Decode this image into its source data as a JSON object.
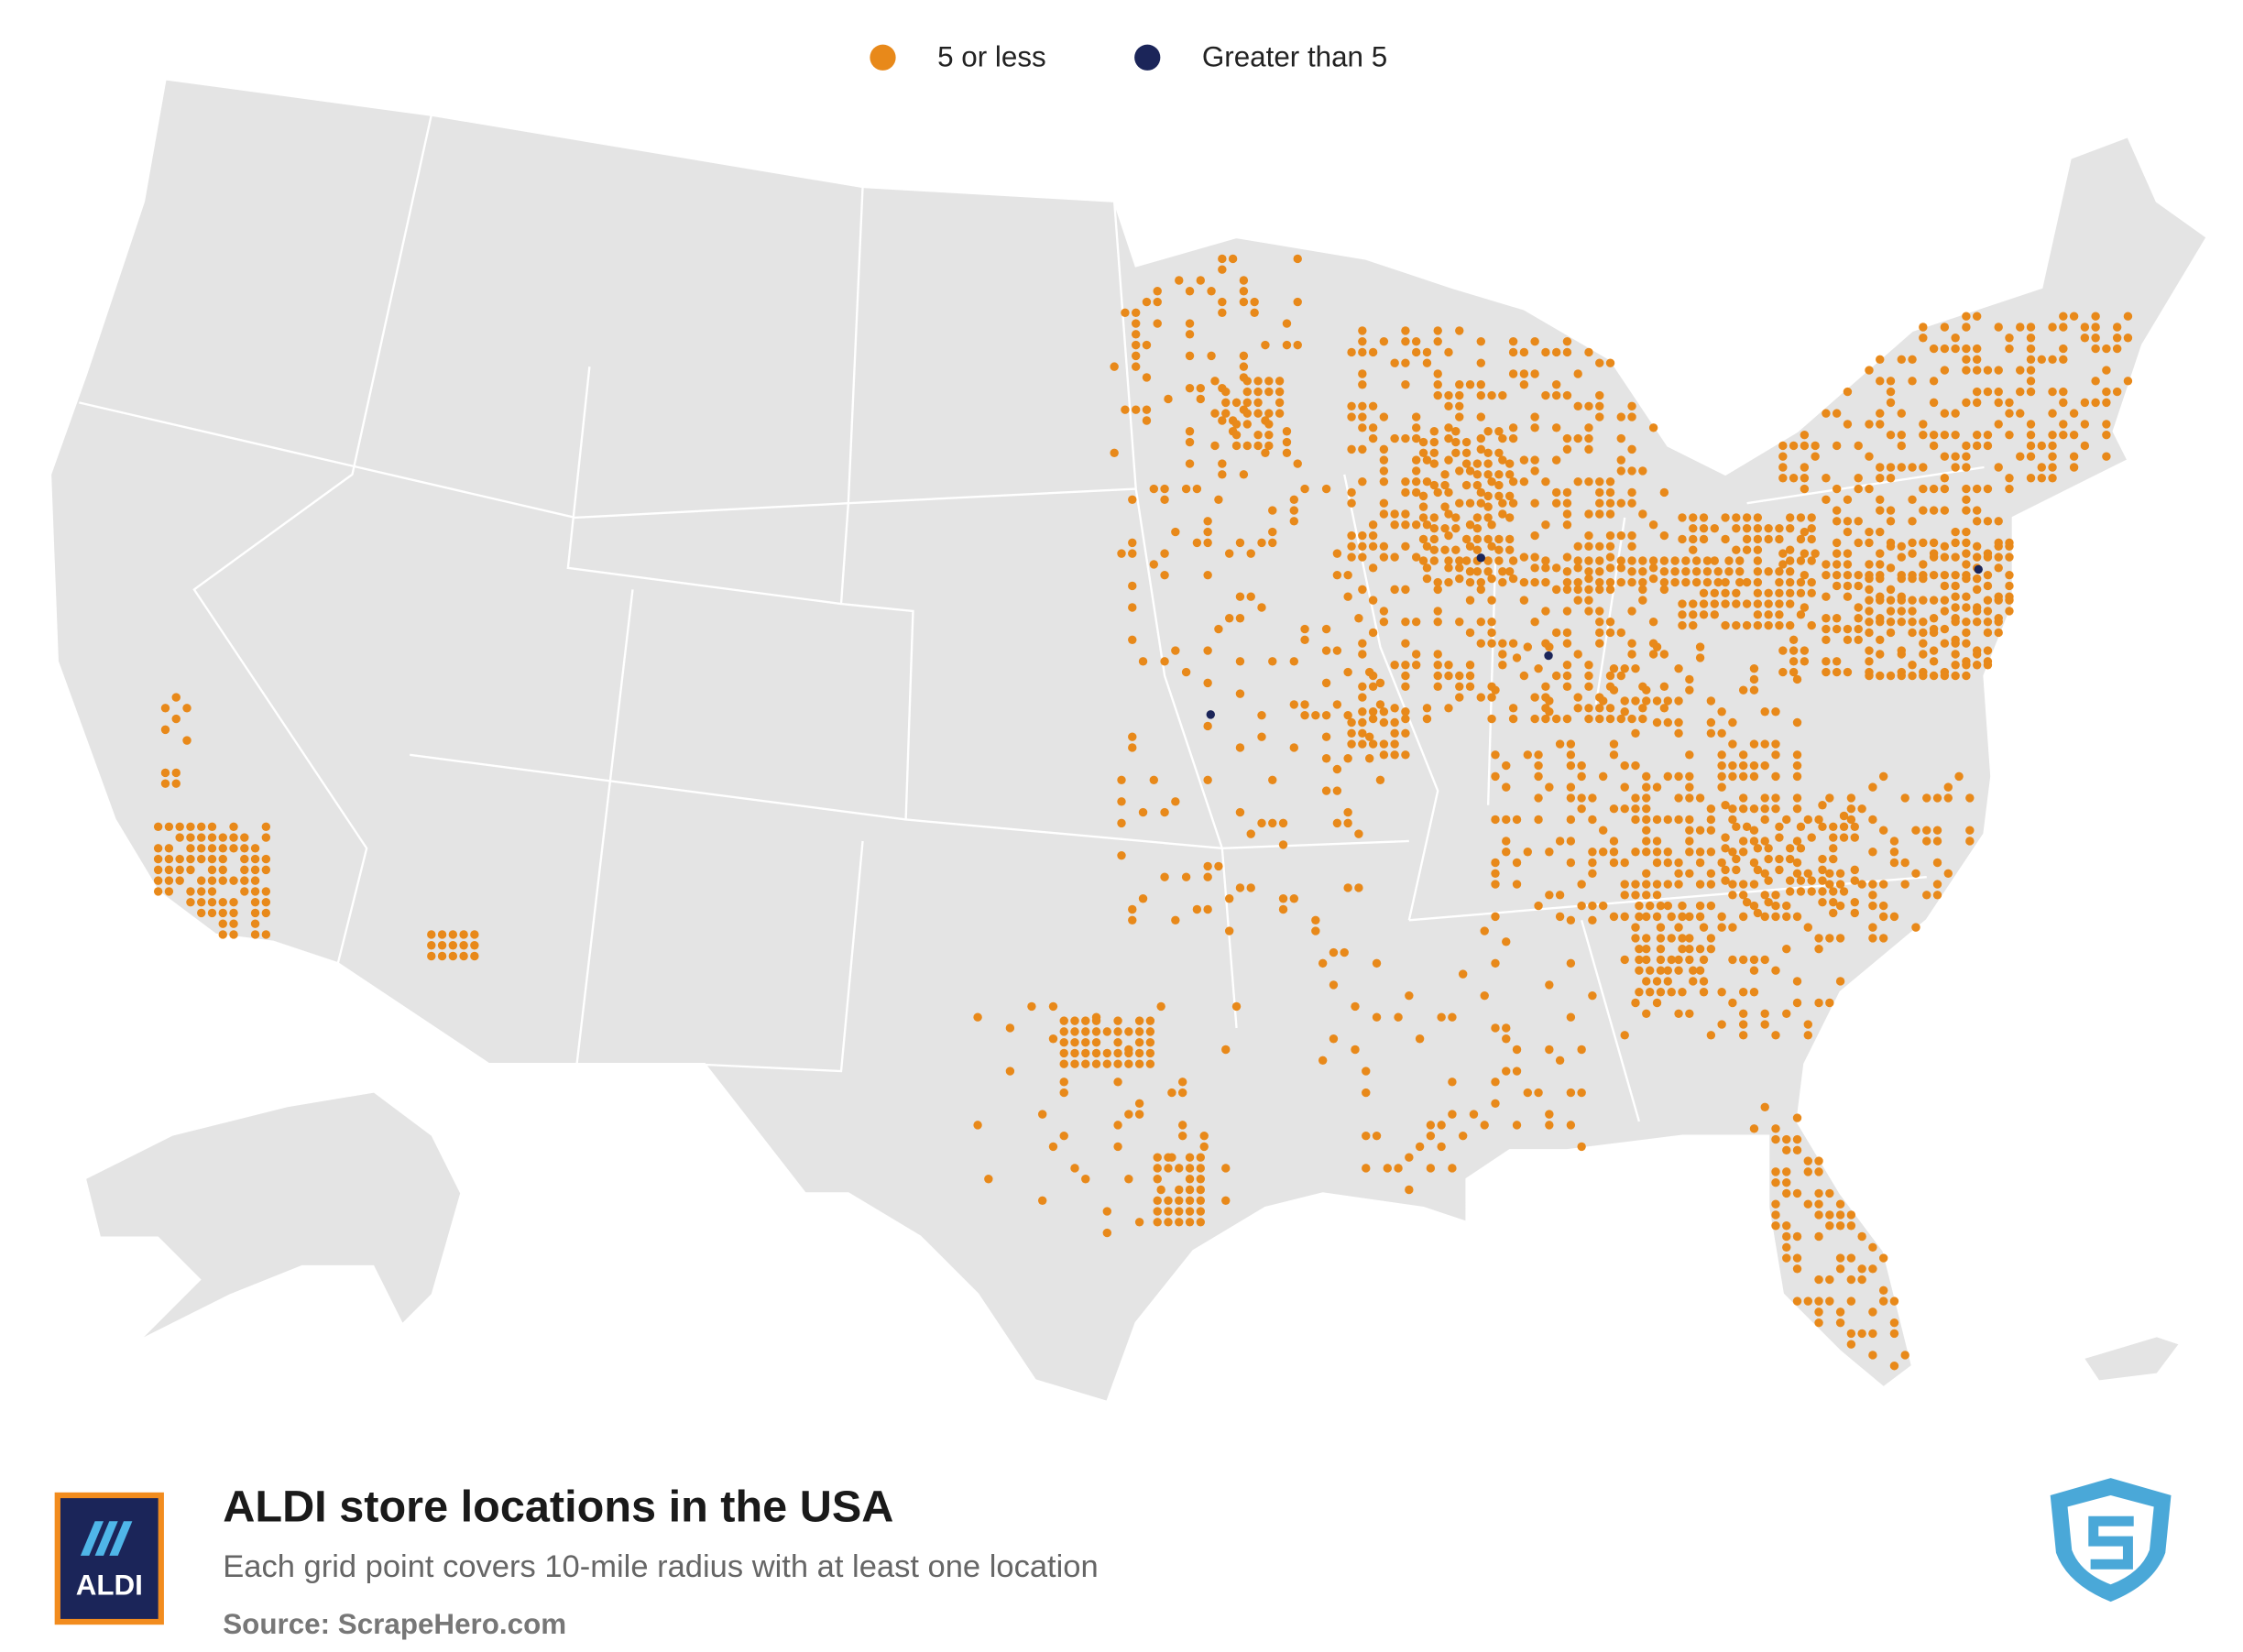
{
  "legend": [
    {
      "label": "5 or less",
      "color": "#e8891a"
    },
    {
      "label": "Greater than 5",
      "color": "#1b2559"
    }
  ],
  "title": "ALDI store locations in the USA",
  "subtitle": "Each grid point covers 10-mile radius with at least one location",
  "source": "Source: ScrapeHero.com",
  "logo": {
    "text": "ALDI"
  }
}
